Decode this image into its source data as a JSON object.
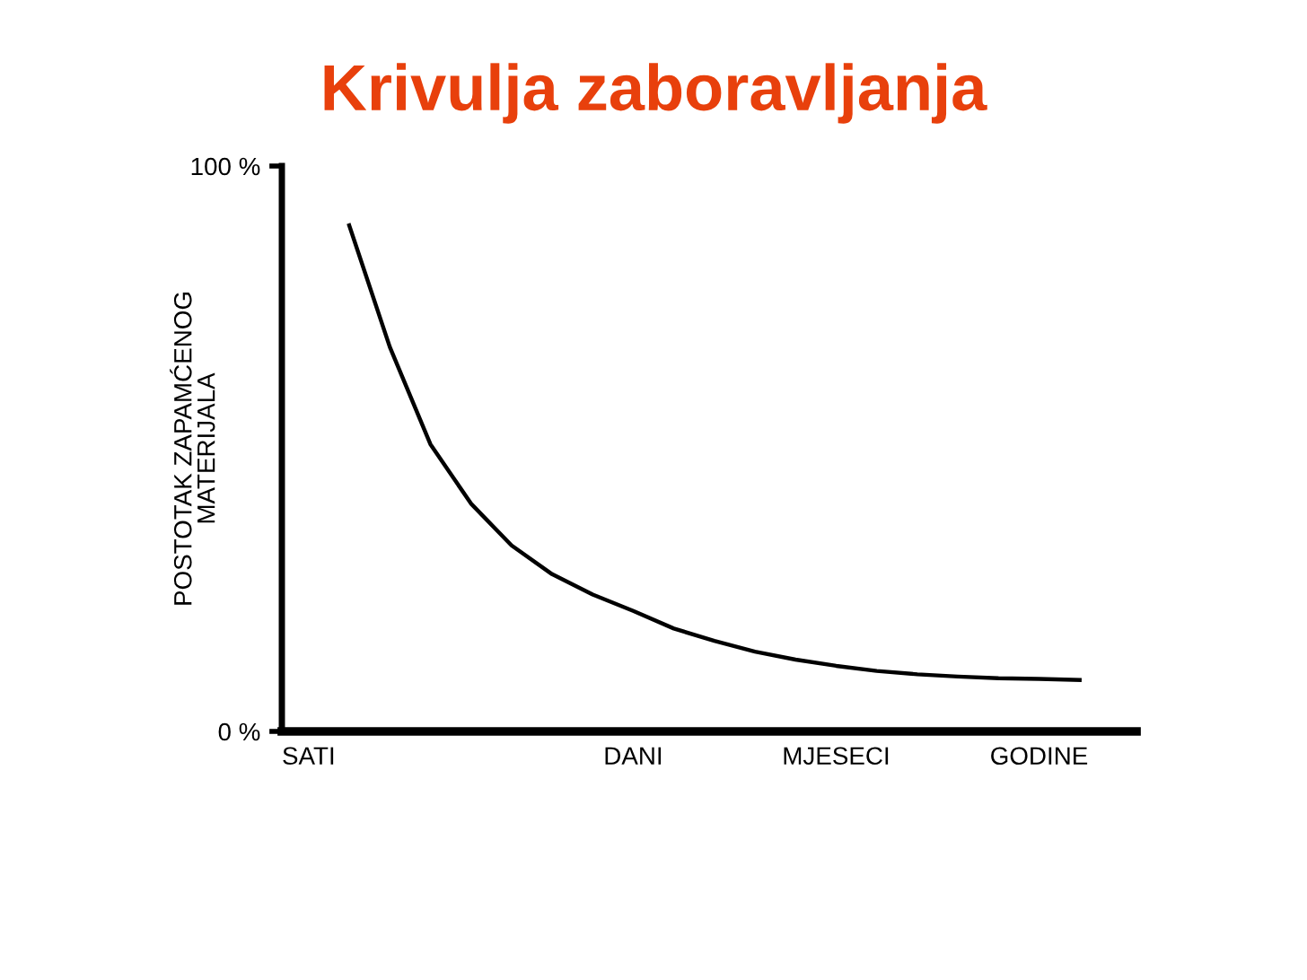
{
  "chart_data": {
    "type": "line",
    "title": "Krivulja zaboravljanja",
    "ylabel": "POSTOTAK ZAPAMĆENOG\nMATERIJALA",
    "categories": [
      "SATI",
      null,
      null,
      null,
      null,
      null,
      null,
      null,
      "DANI",
      null,
      null,
      null,
      null,
      "MJESECI",
      null,
      null,
      null,
      null,
      "GODINE",
      null
    ],
    "ylim": [
      0,
      100
    ],
    "yticks": [
      {
        "value": 0,
        "label": "0 %"
      },
      {
        "value": 100,
        "label": "100 %"
      }
    ],
    "marker": "none",
    "line_style": "solid",
    "series": [
      {
        "color": "#000000",
        "values": [
          null,
          89.5,
          68,
          50.8,
          40.3,
          32.9,
          27.8,
          24.2,
          21.3,
          18.2,
          16.0,
          14.1,
          12.7,
          11.6,
          10.7,
          10.1,
          9.7,
          9.4,
          9.3,
          9.1
        ]
      }
    ]
  }
}
